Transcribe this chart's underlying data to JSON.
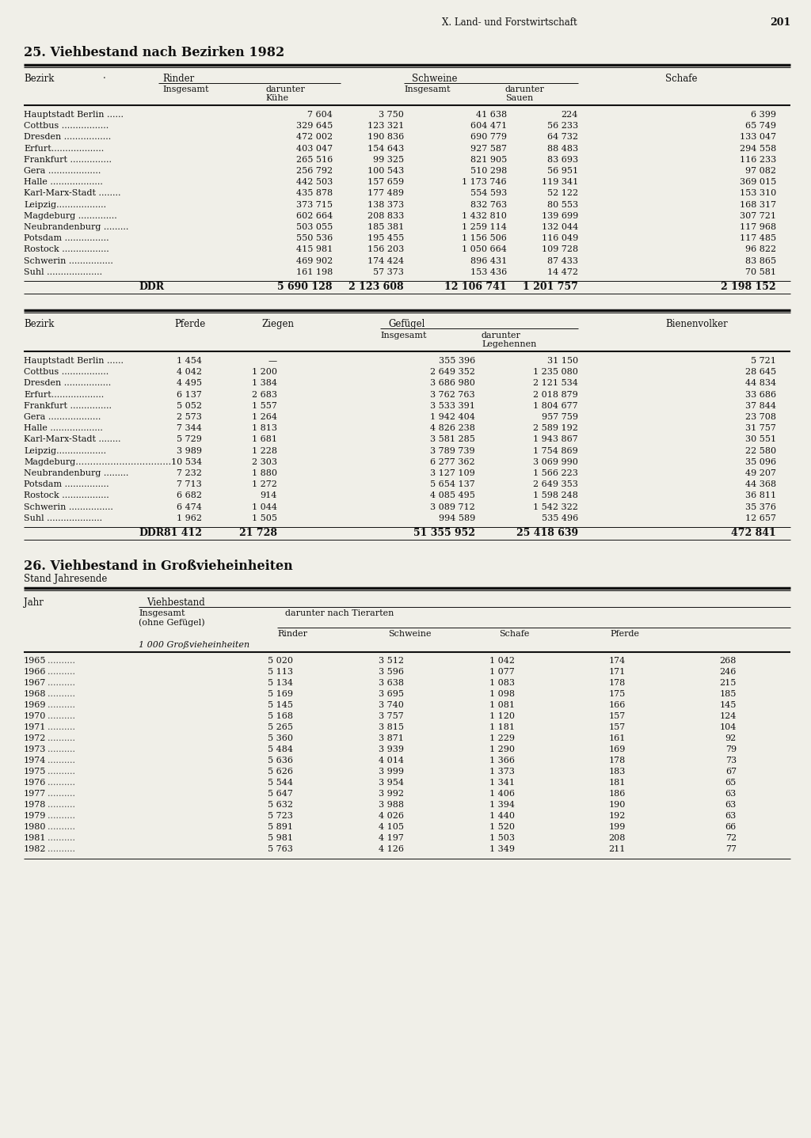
{
  "page_header": "X. Land- und Forstwirtschaft",
  "page_number": "201",
  "title1": "25. Viehbestand nach Bezirken 1982",
  "title2": "26. Viehbestand in Großvieheinheiten",
  "subtitle2": "Stand Jahresende",
  "bg_color": "#f0efe8",
  "t1_rows": [
    [
      "Hauptstadt Berlin ......",
      "7 604",
      "3 750",
      "41 638",
      "224",
      "6 399"
    ],
    [
      "Cottbus .................",
      "329 645",
      "123 321",
      "604 471",
      "56 233",
      "65 749"
    ],
    [
      "Dresden .................",
      "472 002",
      "190 836",
      "690 779",
      "64 732",
      "133 047"
    ],
    [
      "Erfurt...................",
      "403 047",
      "154 643",
      "927 587",
      "88 483",
      "294 558"
    ],
    [
      "Frankfurt ...............",
      "265 516",
      "99 325",
      "821 905",
      "83 693",
      "116 233"
    ],
    [
      "Gera ...................",
      "256 792",
      "100 543",
      "510 298",
      "56 951",
      "97 082"
    ],
    [
      "Halle ...................",
      "442 503",
      "157 659",
      "1 173 746",
      "119 341",
      "369 015"
    ],
    [
      "Karl-Marx-Stadt ........",
      "435 878",
      "177 489",
      "554 593",
      "52 122",
      "153 310"
    ],
    [
      "Leipzig..................",
      "373 715",
      "138 373",
      "832 763",
      "80 553",
      "168 317"
    ],
    [
      "Magdeburg ..............",
      "602 664",
      "208 833",
      "1 432 810",
      "139 699",
      "307 721"
    ],
    [
      "Neubrandenburg .........",
      "503 055",
      "185 381",
      "1 259 114",
      "132 044",
      "117 968"
    ],
    [
      "Potsdam ................",
      "550 536",
      "195 455",
      "1 156 506",
      "116 049",
      "117 485"
    ],
    [
      "Rostock .................",
      "415 981",
      "156 203",
      "1 050 664",
      "109 728",
      "96 822"
    ],
    [
      "Schwerin ................",
      "469 902",
      "174 424",
      "896 431",
      "87 433",
      "83 865"
    ],
    [
      "Suhl ....................",
      "161 198",
      "57 373",
      "153 436",
      "14 472",
      "70 581"
    ]
  ],
  "t1_total": [
    "DDR",
    "5 690 128",
    "2 123 608",
    "12 106 741",
    "1 201 757",
    "2 198 152"
  ],
  "t2_rows": [
    [
      "Hauptstadt Berlin ......",
      "1 454",
      "—",
      "355 396",
      "31 150",
      "5 721"
    ],
    [
      "Cottbus .................",
      "4 042",
      "1 200",
      "2 649 352",
      "1 235 080",
      "28 645"
    ],
    [
      "Dresden .................",
      "4 495",
      "1 384",
      "3 686 980",
      "2 121 534",
      "44 834"
    ],
    [
      "Erfurt...................",
      "6 137",
      "2 683",
      "3 762 763",
      "2 018 879",
      "33 686"
    ],
    [
      "Frankfurt ...............",
      "5 052",
      "1 557",
      "3 533 391",
      "1 804 677",
      "37 844"
    ],
    [
      "Gera ...................",
      "2 573",
      "1 264",
      "1 942 404",
      "957 759",
      "23 708"
    ],
    [
      "Halle ...................",
      "7 344",
      "1 813",
      "4 826 238",
      "2 589 192",
      "31 757"
    ],
    [
      "Karl-Marx-Stadt ........",
      "5 729",
      "1 681",
      "3 581 285",
      "1 943 867",
      "30 551"
    ],
    [
      "Leipzig..................",
      "3 989",
      "1 228",
      "3 789 739",
      "1 754 869",
      "22 580"
    ],
    [
      "Magdeburg……………………………",
      "10 534",
      "2 303",
      "6 277 362",
      "3 069 990",
      "35 096"
    ],
    [
      "Neubrandenburg .........",
      "7 232",
      "1 880",
      "3 127 109",
      "1 566 223",
      "49 207"
    ],
    [
      "Potsdam ................",
      "7 713",
      "1 272",
      "5 654 137",
      "2 649 353",
      "44 368"
    ],
    [
      "Rostock .................",
      "6 682",
      "914",
      "4 085 495",
      "1 598 248",
      "36 811"
    ],
    [
      "Schwerin ................",
      "6 474",
      "1 044",
      "3 089 712",
      "1 542 322",
      "35 376"
    ],
    [
      "Suhl ....................",
      "1 962",
      "1 505",
      "994 589",
      "535 496",
      "12 657"
    ]
  ],
  "t2_total": [
    "DDR",
    "81 412",
    "21 728",
    "51 355 952",
    "25 418 639",
    "472 841"
  ],
  "t3_rows": [
    [
      "1965",
      "5 020",
      "3 512",
      "1 042",
      "174",
      "268"
    ],
    [
      "1966",
      "5 113",
      "3 596",
      "1 077",
      "171",
      "246"
    ],
    [
      "1967",
      "5 134",
      "3 638",
      "1 083",
      "178",
      "215"
    ],
    [
      "1968",
      "5 169",
      "3 695",
      "1 098",
      "175",
      "185"
    ],
    [
      "1969",
      "5 145",
      "3 740",
      "1 081",
      "166",
      "145"
    ],
    [
      "1970",
      "5 168",
      "3 757",
      "1 120",
      "157",
      "124"
    ],
    [
      "1971",
      "5 265",
      "3 815",
      "1 181",
      "157",
      "104"
    ],
    [
      "1972",
      "5 360",
      "3 871",
      "1 229",
      "161",
      "92"
    ],
    [
      "1973",
      "5 484",
      "3 939",
      "1 290",
      "169",
      "79"
    ],
    [
      "1974",
      "5 636",
      "4 014",
      "1 366",
      "178",
      "73"
    ],
    [
      "1975",
      "5 626",
      "3 999",
      "1 373",
      "183",
      "67"
    ],
    [
      "1976",
      "5 544",
      "3 954",
      "1 341",
      "181",
      "65"
    ],
    [
      "1977",
      "5 647",
      "3 992",
      "1 406",
      "186",
      "63"
    ],
    [
      "1978",
      "5 632",
      "3 988",
      "1 394",
      "190",
      "63"
    ],
    [
      "1979",
      "5 723",
      "4 026",
      "1 440",
      "192",
      "63"
    ],
    [
      "1980",
      "5 891",
      "4 105",
      "1 520",
      "199",
      "66"
    ],
    [
      "1981",
      "5 981",
      "4 197",
      "1 503",
      "208",
      "72"
    ],
    [
      "1982",
      "5 763",
      "4 126",
      "1 349",
      "211",
      "77"
    ]
  ]
}
